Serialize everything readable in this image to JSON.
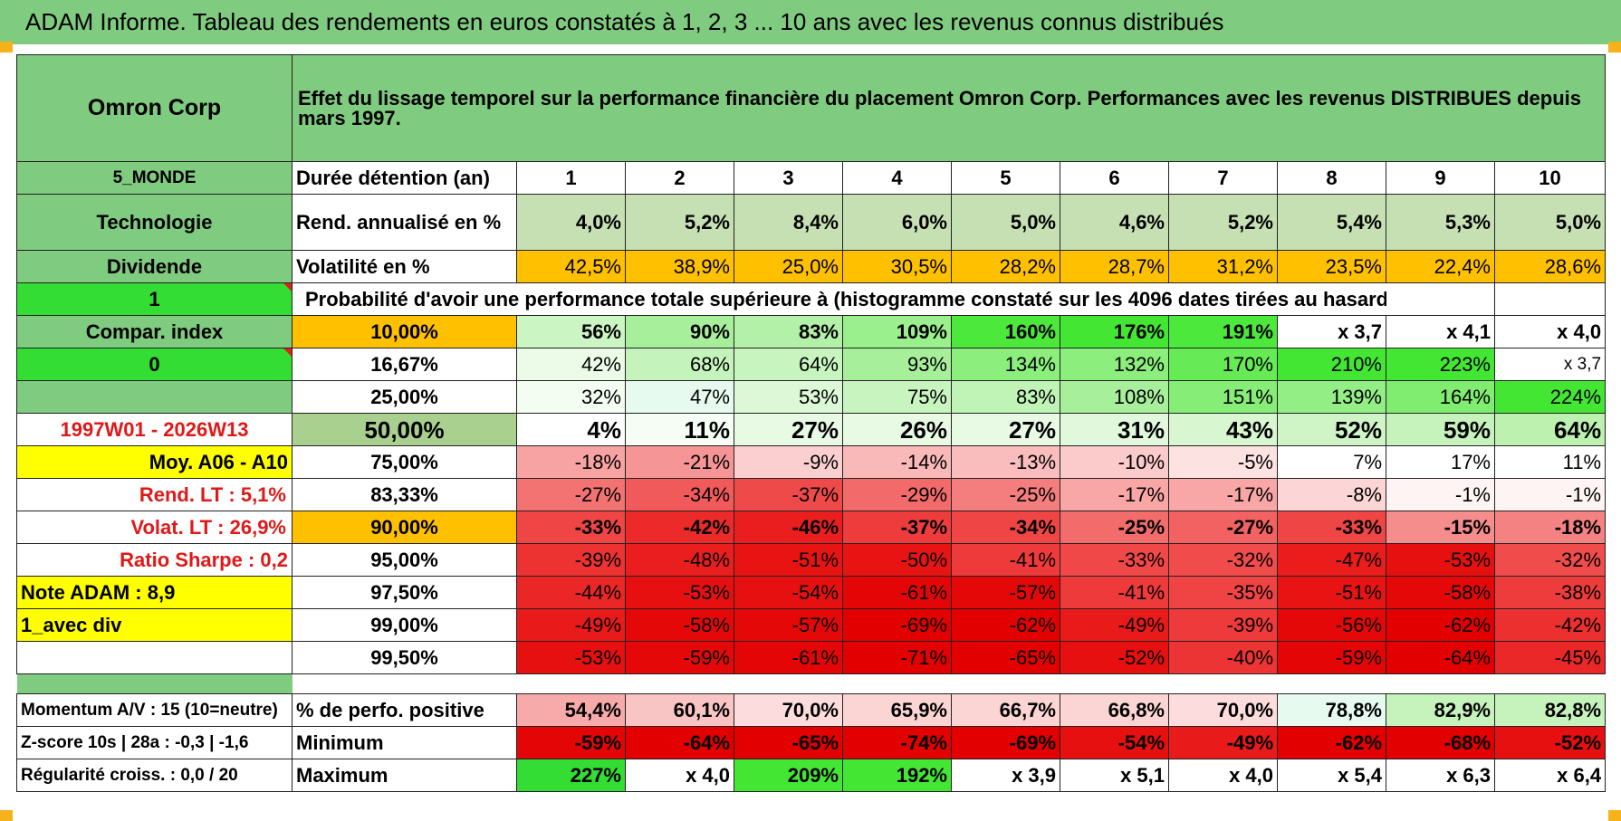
{
  "title": "ADAM Informe. Tableau des rendements en euros constatés à 1, 2, 3 ... 10 ans avec les revenus connus distribués",
  "colors": {
    "header_green": "#7fcb7f",
    "bright_green": "#33dd33",
    "orange": "#ffc000",
    "yellow": "#ffff00",
    "label_red": "#e01818"
  },
  "company": "Omron Corp",
  "header_text": "Effet du lissage temporel sur la performance financière du placement Omron Corp. Performances avec les revenus DISTRIBUES depuis mars 1997.",
  "region": "5_MONDE",
  "sector": "Technologie",
  "dividend_label": "Dividende",
  "flag1": "1",
  "compar_label": "Compar. index",
  "flag0": "0",
  "period": "1997W01 - 2026W13",
  "moy_label": "Moy. A06 - A10",
  "rend_lt": "Rend. LT :   5,1%",
  "volat_lt": "Volat. LT :   26,9%",
  "sharpe": "Ratio Sharpe :    0,2",
  "note_adam": "Note ADAM : 8,9",
  "avec_div": "1_avec div",
  "momentum": "Momentum A/V : 15 (10=neutre)",
  "zscore": "Z-score 10s | 28a : -0,3 | -1,6",
  "regularite": "Régularité croiss. : 0,0 / 20",
  "duration_label": "Durée détention (an)",
  "durations": [
    "1",
    "2",
    "3",
    "4",
    "5",
    "6",
    "7",
    "8",
    "9",
    "10"
  ],
  "rend_label": "Rend. annualisé en %",
  "rend_values": [
    "4,0%",
    "5,2%",
    "8,4%",
    "6,0%",
    "5,0%",
    "4,6%",
    "5,2%",
    "5,4%",
    "5,3%",
    "5,0%"
  ],
  "vol_label": "Volatilité en %",
  "vol_values": [
    "42,5%",
    "38,9%",
    "25,0%",
    "30,5%",
    "28,2%",
    "28,7%",
    "31,2%",
    "23,5%",
    "22,4%",
    "28,6%"
  ],
  "prob_text": "Probabilité d'avoir une performance totale supérieure à (histogramme constaté sur les 4096 dates tirées au hasard)",
  "prob_rows": [
    {
      "pct": "10,00%",
      "values": [
        "56%",
        "90%",
        "83%",
        "109%",
        "160%",
        "176%",
        "191%",
        "x 3,7",
        "x 4,1",
        "x 4,0"
      ]
    },
    {
      "pct": "16,67%",
      "values": [
        "42%",
        "68%",
        "64%",
        "93%",
        "134%",
        "132%",
        "170%",
        "210%",
        "223%",
        "x 3,7"
      ]
    },
    {
      "pct": "25,00%",
      "values": [
        "32%",
        "47%",
        "53%",
        "75%",
        "83%",
        "108%",
        "151%",
        "139%",
        "164%",
        "224%"
      ]
    },
    {
      "pct": "50,00%",
      "values": [
        "4%",
        "11%",
        "27%",
        "26%",
        "27%",
        "31%",
        "43%",
        "52%",
        "59%",
        "64%"
      ]
    },
    {
      "pct": "75,00%",
      "values": [
        "-18%",
        "-21%",
        "-9%",
        "-14%",
        "-13%",
        "-10%",
        "-5%",
        "7%",
        "17%",
        "11%"
      ]
    },
    {
      "pct": "83,33%",
      "values": [
        "-27%",
        "-34%",
        "-37%",
        "-29%",
        "-25%",
        "-17%",
        "-17%",
        "-8%",
        "-1%",
        "-1%"
      ]
    },
    {
      "pct": "90,00%",
      "values": [
        "-33%",
        "-42%",
        "-46%",
        "-37%",
        "-34%",
        "-25%",
        "-27%",
        "-33%",
        "-15%",
        "-18%"
      ]
    },
    {
      "pct": "95,00%",
      "values": [
        "-39%",
        "-48%",
        "-51%",
        "-50%",
        "-41%",
        "-33%",
        "-32%",
        "-47%",
        "-53%",
        "-32%"
      ]
    },
    {
      "pct": "97,50%",
      "values": [
        "-44%",
        "-53%",
        "-54%",
        "-61%",
        "-57%",
        "-41%",
        "-35%",
        "-51%",
        "-58%",
        "-38%"
      ]
    },
    {
      "pct": "99,00%",
      "values": [
        "-49%",
        "-58%",
        "-57%",
        "-69%",
        "-62%",
        "-49%",
        "-39%",
        "-56%",
        "-62%",
        "-42%"
      ]
    },
    {
      "pct": "99,50%",
      "values": [
        "-53%",
        "-59%",
        "-61%",
        "-71%",
        "-65%",
        "-52%",
        "-40%",
        "-59%",
        "-64%",
        "-45%"
      ]
    }
  ],
  "positive_label": "% de perfo. positive",
  "positive_values": [
    "54,4%",
    "60,1%",
    "70,0%",
    "65,9%",
    "66,7%",
    "66,8%",
    "70,0%",
    "78,8%",
    "82,9%",
    "82,8%"
  ],
  "min_label": "Minimum",
  "min_values": [
    "-59%",
    "-64%",
    "-65%",
    "-74%",
    "-69%",
    "-54%",
    "-49%",
    "-62%",
    "-68%",
    "-52%"
  ],
  "max_label": "Maximum",
  "max_values": [
    "227%",
    "x 4,0",
    "209%",
    "192%",
    "x 3,9",
    "x 5,1",
    "x 4,0",
    "x 5,4",
    "x 6,3",
    "x 6,4"
  ]
}
